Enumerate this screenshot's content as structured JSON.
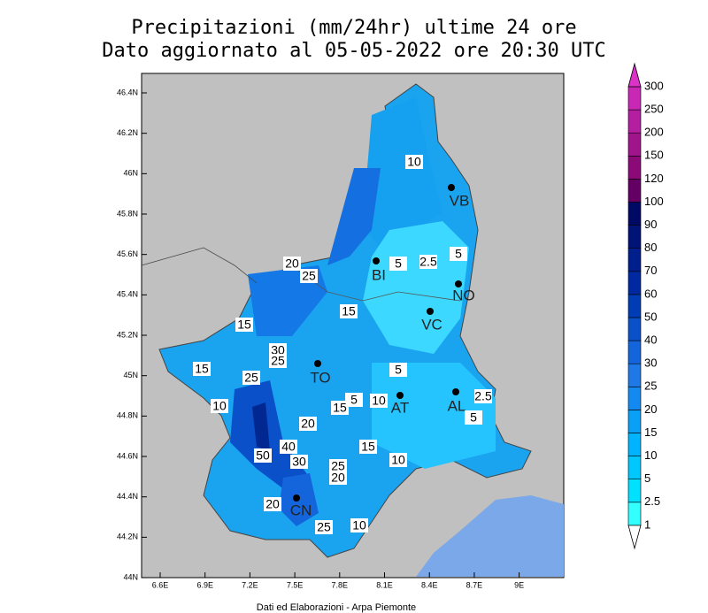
{
  "title": [
    "Precipitazioni (mm/24hr) ultime 24 ore",
    "Dato aggiornato al 05-05-2022 ore 20:30 UTC"
  ],
  "lat_ticks": [
    "46.4N",
    "46.2N",
    "46N",
    "45.8N",
    "45.6N",
    "45.4N",
    "45.2N",
    "45N",
    "44.8N",
    "44.6N",
    "44.4N",
    "44.2N",
    "44N"
  ],
  "lon_ticks": [
    "6.6E",
    "6.9E",
    "7.2E",
    "7.5E",
    "7.8E",
    "8.1E",
    "8.4E",
    "8.7E",
    "9E"
  ],
  "cities": [
    "VB",
    "BI",
    "NO",
    "VC",
    "TO",
    "AT",
    "AL",
    "CN"
  ],
  "contour_labels": [
    "10",
    "2.5",
    "5",
    "5",
    "20",
    "25",
    "15",
    "15",
    "30",
    "25",
    "15",
    "25",
    "5",
    "5",
    "10",
    "15",
    "2.5",
    "5",
    "10",
    "20",
    "40",
    "50",
    "30",
    "15",
    "25",
    "20",
    "10",
    "20",
    "25",
    "10"
  ],
  "colorbar": {
    "labels": [
      "1",
      "2.5",
      "5",
      "10",
      "15",
      "20",
      "25",
      "30",
      "40",
      "50",
      "60",
      "70",
      "80",
      "90",
      "100",
      "120",
      "150",
      "200",
      "250",
      "300"
    ],
    "colors": [
      "#ffffff",
      "#33ffff",
      "#00e0ff",
      "#00c8ff",
      "#00b4ff",
      "#0aa0f5",
      "#1489f0",
      "#1e78e6",
      "#1464dc",
      "#0a50c8",
      "#003cb4",
      "#0028a0",
      "#001e8c",
      "#001478",
      "#000a64",
      "#640064",
      "#8c0a78",
      "#a0148c",
      "#b41ea0",
      "#c828b4",
      "#dc32c8"
    ]
  },
  "footer": "Dati ed Elaborazioni - Arpa Piemonte"
}
